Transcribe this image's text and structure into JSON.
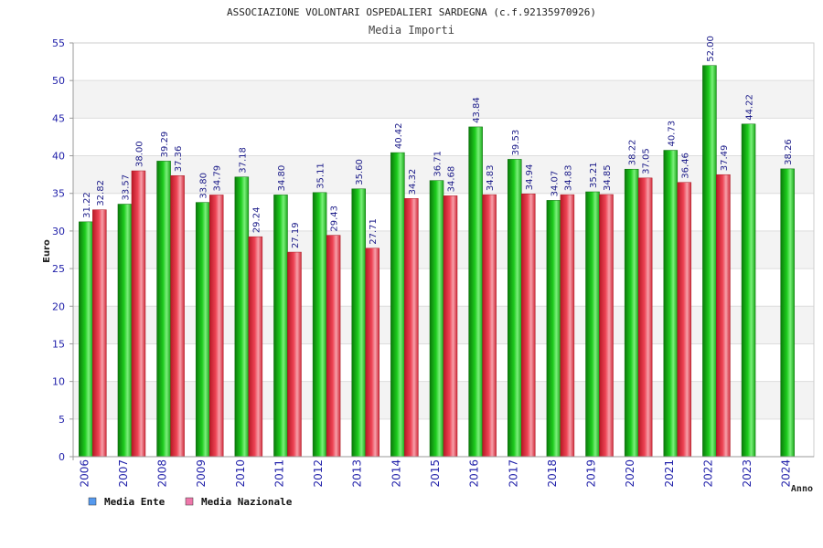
{
  "chart_data": {
    "type": "bar",
    "title": "ASSOCIAZIONE VOLONTARI OSPEDALIERI SARDEGNA (c.f.92135970926)",
    "subtitle": "Media Importi",
    "xlabel": "Anno",
    "ylabel": "Euro",
    "ylim": [
      0,
      55
    ],
    "yticks": [
      "0",
      "5",
      "10",
      "15",
      "20",
      "25",
      "30",
      "35",
      "40",
      "45",
      "50",
      "55"
    ],
    "grid": true,
    "legend_position": "bottom-left",
    "categories": [
      "2006",
      "2007",
      "2008",
      "2009",
      "2010",
      "2011",
      "2012",
      "2013",
      "2014",
      "2015",
      "2016",
      "2017",
      "2018",
      "2019",
      "2020",
      "2021",
      "2022",
      "2023",
      "2024"
    ],
    "series": [
      {
        "name": "Media Ente",
        "color": "#22bb22",
        "values": [
          31.22,
          33.57,
          39.29,
          33.8,
          37.18,
          34.8,
          35.11,
          35.6,
          40.42,
          36.71,
          43.84,
          39.53,
          34.07,
          35.21,
          38.22,
          40.73,
          52.0,
          44.22,
          38.26
        ],
        "labels": [
          "31.22",
          "33.57",
          "39.29",
          "33.80",
          "37.18",
          "34.80",
          "35.11",
          "35.60",
          "40.42",
          "36.71",
          "43.84",
          "39.53",
          "34.07",
          "35.21",
          "38.22",
          "40.73",
          "52.00",
          "44.22",
          "38.26"
        ]
      },
      {
        "name": "Media Nazionale",
        "color": "#dd3344",
        "values": [
          32.82,
          38.0,
          37.36,
          34.79,
          29.24,
          27.19,
          29.43,
          27.71,
          34.32,
          34.68,
          34.83,
          34.94,
          34.83,
          34.85,
          37.05,
          36.46,
          37.49,
          null,
          null
        ],
        "labels": [
          "32.82",
          "38.00",
          "37.36",
          "34.79",
          "29.24",
          "27.19",
          "29.43",
          "27.71",
          "34.32",
          "34.68",
          "34.83",
          "34.94",
          "34.83",
          "34.85",
          "37.05",
          "36.46",
          "37.49",
          "",
          ""
        ]
      }
    ],
    "legend": [
      {
        "name": "Media Ente",
        "swatch": "#5599ee"
      },
      {
        "name": "Media Nazionale",
        "swatch": "#ee77aa"
      }
    ]
  }
}
